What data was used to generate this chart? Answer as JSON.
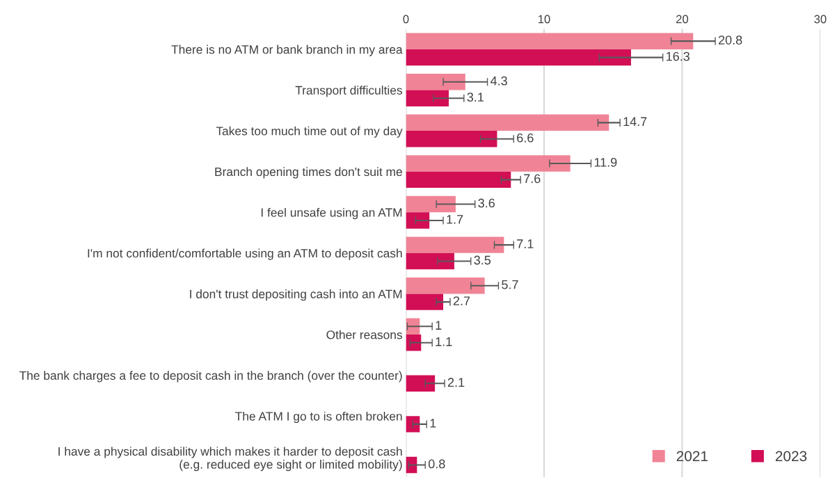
{
  "chart_data": {
    "type": "bar",
    "orientation": "horizontal",
    "categories": [
      "There is no ATM or bank branch in my area",
      "Transport difficulties",
      "Takes too much time out of my day",
      "Branch opening times don't suit me",
      "I feel unsafe using an ATM",
      "I'm not confident/comfortable using an ATM to deposit cash",
      "I don't trust depositing cash into an ATM",
      "Other reasons",
      "The bank charges a fee to deposit cash in the branch (over the counter)",
      "The ATM I go to is often broken",
      "I have a physical disability which makes it harder to deposit cash\n(e.g. reduced eye sight or limited mobility)"
    ],
    "series": [
      {
        "name": "2021",
        "color": "#f08496",
        "values": [
          20.8,
          4.3,
          14.7,
          11.9,
          3.6,
          7.1,
          5.7,
          1,
          null,
          null,
          null
        ],
        "errors": [
          [
            19.2,
            22.4
          ],
          [
            2.7,
            5.9
          ],
          [
            13.9,
            15.5
          ],
          [
            10.4,
            13.4
          ],
          [
            2.2,
            5.0
          ],
          [
            6.4,
            7.8
          ],
          [
            4.7,
            6.7
          ],
          [
            0.1,
            1.9
          ],
          null,
          null,
          null
        ]
      },
      {
        "name": "2023",
        "color": "#d20f55",
        "values": [
          16.3,
          3.1,
          6.6,
          7.6,
          1.7,
          3.5,
          2.7,
          1.1,
          2.1,
          1,
          0.8
        ],
        "errors": [
          [
            14.0,
            18.6
          ],
          [
            2.0,
            4.2
          ],
          [
            5.4,
            7.8
          ],
          [
            6.9,
            8.3
          ],
          [
            0.7,
            2.7
          ],
          [
            2.3,
            4.7
          ],
          [
            2.2,
            3.2
          ],
          [
            0.3,
            1.9
          ],
          [
            1.4,
            2.8
          ],
          [
            0.5,
            1.5
          ],
          [
            0.2,
            1.4
          ]
        ]
      }
    ],
    "xlim": [
      0,
      30
    ],
    "xticks": [
      0,
      10,
      20,
      30
    ],
    "grid": "x",
    "legend": "bottom right",
    "data_labels": true
  }
}
